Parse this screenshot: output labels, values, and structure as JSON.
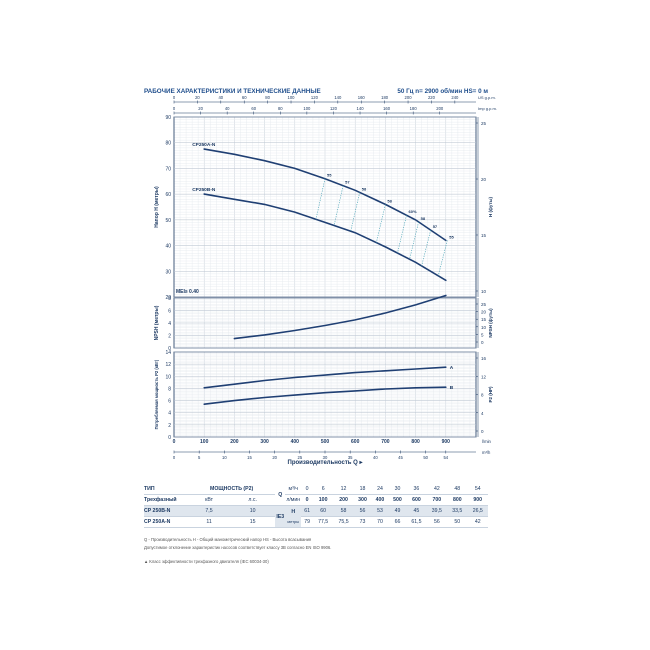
{
  "header": {
    "title": "РАБОЧИЕ ХАРАКТЕРИСТИКИ И ТЕХНИЧЕСКИЕ ДАННЫЕ",
    "conditions": "50 Гц   n= 2900 об/мин   HS= 0 м"
  },
  "chart_data": {
    "type": "line",
    "top_axes": [
      {
        "unit": "US g.p.m.",
        "ticks": [
          "0",
          "20",
          "40",
          "60",
          "80",
          "100",
          "120",
          "140",
          "160",
          "180",
          "200",
          "220",
          "240"
        ]
      },
      {
        "unit": "Imp g.p.m.",
        "ticks": [
          "0",
          "20",
          "40",
          "60",
          "80",
          "100",
          "120",
          "140",
          "160",
          "180",
          "200"
        ]
      }
    ],
    "bottom_axes": [
      {
        "unit": "l/min",
        "ticks": [
          "0",
          "100",
          "200",
          "300",
          "400",
          "500",
          "600",
          "700",
          "800",
          "900"
        ]
      },
      {
        "unit": "m³/h",
        "ticks": [
          "0",
          "5",
          "10",
          "15",
          "20",
          "25",
          "30",
          "35",
          "40",
          "45",
          "50",
          "54"
        ]
      }
    ],
    "xlabel": "Производительность Q",
    "xlim": [
      0,
      1000
    ],
    "panels": [
      {
        "id": "head",
        "ylabel": "Напор H (метры)",
        "ylabel_right": "H (футы)",
        "ylim": [
          20,
          90
        ],
        "y_ticks": [
          "20",
          "30",
          "40",
          "50",
          "60",
          "70",
          "80",
          "90"
        ],
        "y_ticks_right": [
          "10",
          "15",
          "20",
          "25"
        ],
        "mei": "MEI≥ 0.40",
        "series": [
          {
            "name": "CP250A-N",
            "x": [
              100,
              200,
              300,
              400,
              500,
              600,
              700,
              800,
              900
            ],
            "y": [
              77.5,
              75.5,
              73,
              70,
              66,
              61.5,
              56,
              50,
              42
            ]
          },
          {
            "name": "CP250B-N",
            "x": [
              100,
              200,
              300,
              400,
              500,
              600,
              700,
              800,
              900
            ],
            "y": [
              60,
              58,
              56,
              53,
              49,
              45,
              39.5,
              33.5,
              26.5
            ]
          }
        ],
        "efficiency_labels": [
          "55",
          "57",
          "58",
          "58",
          "60%",
          "58",
          "57",
          "55"
        ]
      },
      {
        "id": "npsh",
        "ylabel": "NPSH (метры)",
        "ylabel_right": "NPSH (футы)",
        "ylim": [
          0,
          8
        ],
        "y_ticks": [
          "0",
          "2",
          "4",
          "6",
          "8"
        ],
        "y_ticks_right": [
          "0",
          "5",
          "10",
          "15",
          "20",
          "25"
        ],
        "series": [
          {
            "name": "NPSH",
            "x": [
              200,
              300,
              400,
              500,
              600,
              700,
              800,
              900
            ],
            "y": [
              1.5,
              2.1,
              2.8,
              3.6,
              4.5,
              5.6,
              6.9,
              8.4
            ]
          }
        ]
      },
      {
        "id": "power",
        "ylabel": "Потребляемая мощность P2 (кВт)",
        "ylabel_right": "P2 (HP)",
        "ylim": [
          0,
          14
        ],
        "y_ticks": [
          "0",
          "2",
          "4",
          "6",
          "8",
          "10",
          "12",
          "14"
        ],
        "y_ticks_right": [
          "0",
          "4",
          "8",
          "12",
          "16"
        ],
        "series": [
          {
            "name": "A",
            "x": [
              100,
              200,
              300,
              400,
              500,
              600,
              700,
              800,
              900
            ],
            "y": [
              8.1,
              8.7,
              9.3,
              9.8,
              10.2,
              10.6,
              10.9,
              11.2,
              11.5
            ]
          },
          {
            "name": "B",
            "x": [
              100,
              200,
              300,
              400,
              500,
              600,
              700,
              800,
              900
            ],
            "y": [
              5.4,
              6,
              6.5,
              6.9,
              7.3,
              7.6,
              7.9,
              8.1,
              8.2
            ]
          }
        ]
      }
    ]
  },
  "table": {
    "h_type": "ТИП",
    "h_power": "МОЩНОСТЬ (P2)",
    "h_phase": "Трехфазный",
    "h_kw": "кВт",
    "h_hp": "л.с.",
    "q_symbol": "Q",
    "q_unit1": "м³/ч",
    "q_unit2": "л/мин",
    "q_m3h": [
      "0",
      "6",
      "12",
      "18",
      "24",
      "30",
      "36",
      "42",
      "48",
      "54"
    ],
    "q_lmin": [
      "0",
      "100",
      "200",
      "300",
      "400",
      "500",
      "600",
      "700",
      "800",
      "900"
    ],
    "ie": "IE3",
    "h_symbol": "H",
    "h_unit": "метры",
    "rows": [
      {
        "model": "CP 250B-N",
        "kw": "7,5",
        "hp": "10",
        "values": [
          "61",
          "60",
          "58",
          "56",
          "53",
          "49",
          "45",
          "39,5",
          "33,5",
          "26,5"
        ]
      },
      {
        "model": "CP 250A-N",
        "kw": "11",
        "hp": "15",
        "values": [
          "79",
          "77,5",
          "75,5",
          "73",
          "70",
          "66",
          "61,5",
          "56",
          "50",
          "42"
        ]
      }
    ]
  },
  "notes": {
    "n1": "Q - Производительность   H - Общий манометрический напор   HS - Высота всасывания",
    "n2": "Допустимое отклонение характеристик насосов соответствует классу 3B согласно EN ISO 9906.",
    "n3": "▲ Класс эффективности трехфазного двигателя (IEC 60034-30)"
  }
}
